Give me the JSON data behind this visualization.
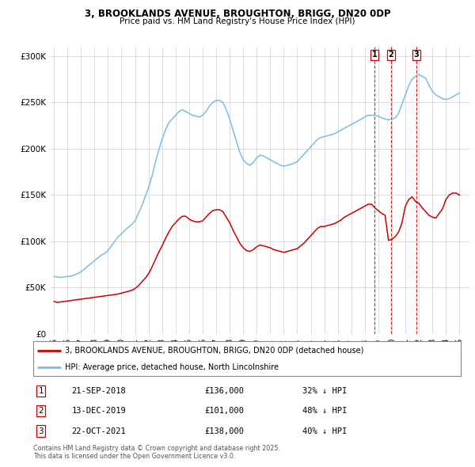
{
  "title1": "3, BROOKLANDS AVENUE, BROUGHTON, BRIGG, DN20 0DP",
  "title2": "Price paid vs. HM Land Registry's House Price Index (HPI)",
  "ylim": [
    0,
    310000
  ],
  "yticks": [
    0,
    50000,
    100000,
    150000,
    200000,
    250000,
    300000
  ],
  "ytick_labels": [
    "£0",
    "£50K",
    "£100K",
    "£150K",
    "£200K",
    "£250K",
    "£300K"
  ],
  "hpi_color": "#7bbce8",
  "price_color": "#cc0000",
  "vline_color": "#cc0000",
  "legend1": "3, BROOKLANDS AVENUE, BROUGHTON, BRIGG, DN20 0DP (detached house)",
  "legend2": "HPI: Average price, detached house, North Lincolnshire",
  "transactions": [
    {
      "num": 1,
      "date": "21-SEP-2018",
      "price": 136000,
      "pct": "32%",
      "year": 2018.72
    },
    {
      "num": 2,
      "date": "13-DEC-2019",
      "price": 101000,
      "pct": "48%",
      "year": 2019.95
    },
    {
      "num": 3,
      "date": "22-OCT-2021",
      "price": 138000,
      "pct": "40%",
      "year": 2021.81
    }
  ],
  "footnote1": "Contains HM Land Registry data © Crown copyright and database right 2025.",
  "footnote2": "This data is licensed under the Open Government Licence v3.0.",
  "xlim_left": 1994.7,
  "xlim_right": 2025.8,
  "xticks": [
    1995,
    1996,
    1997,
    1998,
    1999,
    2000,
    2001,
    2002,
    2003,
    2004,
    2005,
    2006,
    2007,
    2008,
    2009,
    2010,
    2011,
    2012,
    2013,
    2014,
    2015,
    2016,
    2017,
    2018,
    2019,
    2020,
    2021,
    2022,
    2023,
    2024,
    2025
  ],
  "hpi_years": [
    1995.0,
    1995.25,
    1995.5,
    1995.75,
    1996.0,
    1996.25,
    1996.5,
    1996.75,
    1997.0,
    1997.25,
    1997.5,
    1997.75,
    1998.0,
    1998.25,
    1998.5,
    1998.75,
    1999.0,
    1999.25,
    1999.5,
    1999.75,
    2000.0,
    2000.25,
    2000.5,
    2000.75,
    2001.0,
    2001.25,
    2001.5,
    2001.75,
    2002.0,
    2002.25,
    2002.5,
    2002.75,
    2003.0,
    2003.25,
    2003.5,
    2003.75,
    2004.0,
    2004.25,
    2004.5,
    2004.75,
    2005.0,
    2005.25,
    2005.5,
    2005.75,
    2006.0,
    2006.25,
    2006.5,
    2006.75,
    2007.0,
    2007.25,
    2007.5,
    2007.75,
    2008.0,
    2008.25,
    2008.5,
    2008.75,
    2009.0,
    2009.25,
    2009.5,
    2009.75,
    2010.0,
    2010.25,
    2010.5,
    2010.75,
    2011.0,
    2011.25,
    2011.5,
    2011.75,
    2012.0,
    2012.25,
    2012.5,
    2012.75,
    2013.0,
    2013.25,
    2013.5,
    2013.75,
    2014.0,
    2014.25,
    2014.5,
    2014.75,
    2015.0,
    2015.25,
    2015.5,
    2015.75,
    2016.0,
    2016.25,
    2016.5,
    2016.75,
    2017.0,
    2017.25,
    2017.5,
    2017.75,
    2018.0,
    2018.25,
    2018.5,
    2018.75,
    2019.0,
    2019.25,
    2019.5,
    2019.75,
    2020.0,
    2020.25,
    2020.5,
    2020.75,
    2021.0,
    2021.25,
    2021.5,
    2021.75,
    2022.0,
    2022.25,
    2022.5,
    2022.75,
    2023.0,
    2023.25,
    2023.5,
    2023.75,
    2024.0,
    2024.25,
    2024.5,
    2024.75,
    2025.0
  ],
  "hpi_values": [
    62000,
    61500,
    61000,
    61500,
    62000,
    62500,
    63500,
    65000,
    67000,
    70000,
    73000,
    76000,
    79000,
    82000,
    85000,
    87000,
    90000,
    95000,
    100000,
    105000,
    108000,
    112000,
    115000,
    118000,
    122000,
    130000,
    138000,
    148000,
    158000,
    170000,
    185000,
    198000,
    210000,
    220000,
    228000,
    232000,
    236000,
    240000,
    242000,
    240000,
    238000,
    236000,
    235000,
    234000,
    236000,
    240000,
    246000,
    250000,
    252000,
    252000,
    250000,
    242000,
    232000,
    220000,
    208000,
    196000,
    188000,
    184000,
    182000,
    185000,
    190000,
    193000,
    192000,
    190000,
    188000,
    186000,
    184000,
    182000,
    181000,
    182000,
    183000,
    184000,
    186000,
    190000,
    194000,
    198000,
    202000,
    206000,
    210000,
    212000,
    213000,
    214000,
    215000,
    216000,
    218000,
    220000,
    222000,
    224000,
    226000,
    228000,
    230000,
    232000,
    234000,
    236000,
    236000,
    236000,
    235000,
    233000,
    232000,
    231000,
    232000,
    233000,
    238000,
    248000,
    258000,
    268000,
    275000,
    278000,
    280000,
    278000,
    276000,
    268000,
    262000,
    258000,
    256000,
    254000,
    253000,
    254000,
    256000,
    258000,
    260000
  ],
  "price_years": [
    1995.0,
    1995.25,
    1995.5,
    1995.75,
    1996.0,
    1996.25,
    1996.5,
    1996.75,
    1997.0,
    1997.25,
    1997.5,
    1997.75,
    1998.0,
    1998.25,
    1998.5,
    1998.75,
    1999.0,
    1999.25,
    1999.5,
    1999.75,
    2000.0,
    2000.25,
    2000.5,
    2000.75,
    2001.0,
    2001.25,
    2001.5,
    2001.75,
    2002.0,
    2002.25,
    2002.5,
    2002.75,
    2003.0,
    2003.25,
    2003.5,
    2003.75,
    2004.0,
    2004.25,
    2004.5,
    2004.75,
    2005.0,
    2005.25,
    2005.5,
    2005.75,
    2006.0,
    2006.25,
    2006.5,
    2006.75,
    2007.0,
    2007.25,
    2007.5,
    2007.75,
    2008.0,
    2008.25,
    2008.5,
    2008.75,
    2009.0,
    2009.25,
    2009.5,
    2009.75,
    2010.0,
    2010.25,
    2010.5,
    2010.75,
    2011.0,
    2011.25,
    2011.5,
    2011.75,
    2012.0,
    2012.25,
    2012.5,
    2012.75,
    2013.0,
    2013.25,
    2013.5,
    2013.75,
    2014.0,
    2014.25,
    2014.5,
    2014.75,
    2015.0,
    2015.25,
    2015.5,
    2015.75,
    2016.0,
    2016.25,
    2016.5,
    2016.75,
    2017.0,
    2017.25,
    2017.5,
    2017.75,
    2018.0,
    2018.25,
    2018.5,
    2018.75,
    2019.0,
    2019.25,
    2019.5,
    2019.75,
    2020.0,
    2020.25,
    2020.5,
    2020.75,
    2021.0,
    2021.25,
    2021.5,
    2021.75,
    2022.0,
    2022.25,
    2022.5,
    2022.75,
    2023.0,
    2023.25,
    2023.5,
    2023.75,
    2024.0,
    2024.25,
    2024.5,
    2024.75,
    2025.0
  ],
  "price_values": [
    35000,
    34000,
    34500,
    35000,
    35500,
    36000,
    36500,
    37000,
    37500,
    38000,
    38500,
    39000,
    39500,
    40000,
    40500,
    41000,
    41500,
    42000,
    42500,
    43000,
    44000,
    45000,
    46000,
    47000,
    49000,
    52000,
    56000,
    60000,
    65000,
    72000,
    80000,
    88000,
    95000,
    103000,
    110000,
    116000,
    120000,
    124000,
    127000,
    127000,
    124000,
    122000,
    121000,
    121000,
    122000,
    126000,
    130000,
    133000,
    134000,
    134000,
    132000,
    126000,
    120000,
    112000,
    105000,
    98000,
    93000,
    90000,
    89000,
    91000,
    94000,
    96000,
    95000,
    94000,
    93000,
    91000,
    90000,
    89000,
    88000,
    89000,
    90000,
    91000,
    92000,
    95000,
    98000,
    102000,
    106000,
    110000,
    114000,
    116000,
    116000,
    117000,
    118000,
    119000,
    121000,
    123000,
    126000,
    128000,
    130000,
    132000,
    134000,
    136000,
    138000,
    140000,
    140000,
    136000,
    133000,
    130000,
    128000,
    101000,
    102000,
    105000,
    110000,
    120000,
    138000,
    145000,
    148000,
    143000,
    141000,
    136000,
    132000,
    128000,
    126000,
    125000,
    130000,
    135000,
    145000,
    150000,
    152000,
    152000,
    150000
  ]
}
